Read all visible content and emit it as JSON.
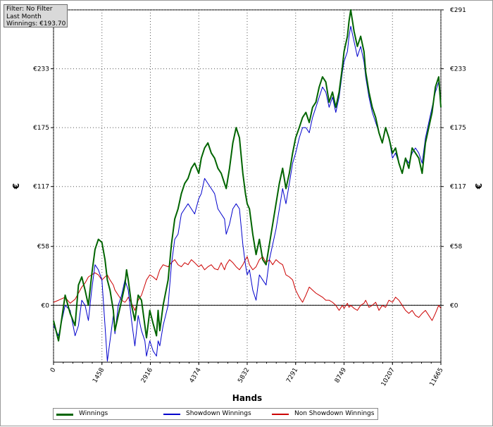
{
  "info_box": {
    "filter": "Filter: No Filter",
    "period": "Last Month",
    "winnings": "Winnings: €193.70"
  },
  "chart_data": {
    "type": "line",
    "xlabel": "Hands",
    "ylabel": "€",
    "xlim": [
      0,
      11665
    ],
    "ylim": [
      -56,
      291
    ],
    "x_ticks": [
      0,
      1458,
      2916,
      4374,
      5832,
      7291,
      8749,
      10207,
      11665
    ],
    "x_tick_labels": [
      "0",
      "1458",
      "2916",
      "4374",
      "5832",
      "7291",
      "8749",
      "10207",
      "11665"
    ],
    "y_ticks": [
      0,
      58,
      117,
      175,
      233,
      291
    ],
    "y_tick_labels": [
      "€0",
      "€58",
      "€117",
      "€175",
      "€233",
      "€291"
    ],
    "grid": true,
    "legend_position": "bottom",
    "series": [
      {
        "name": "Winnings",
        "color": "#006400",
        "x": [
          0,
          150,
          350,
          500,
          650,
          750,
          850,
          950,
          1050,
          1150,
          1250,
          1350,
          1458,
          1550,
          1620,
          1700,
          1800,
          1850,
          1950,
          2050,
          2150,
          2200,
          2250,
          2350,
          2450,
          2550,
          2650,
          2750,
          2800,
          2900,
          3000,
          3100,
          3150,
          3200,
          3300,
          3450,
          3550,
          3650,
          3750,
          3850,
          3950,
          4050,
          4150,
          4250,
          4374,
          4450,
          4550,
          4650,
          4750,
          4850,
          4950,
          5050,
          5150,
          5200,
          5300,
          5400,
          5500,
          5600,
          5700,
          5780,
          5832,
          5900,
          6000,
          6100,
          6200,
          6300,
          6400,
          6500,
          6600,
          6700,
          6800,
          6900,
          7000,
          7100,
          7200,
          7291,
          7400,
          7500,
          7600,
          7700,
          7800,
          7900,
          8000,
          8100,
          8200,
          8300,
          8400,
          8500,
          8600,
          8700,
          8749,
          8850,
          8900,
          8950,
          9050,
          9150,
          9250,
          9350,
          9400,
          9500,
          9600,
          9700,
          9800,
          9900,
          10000,
          10100,
          10207,
          10300,
          10400,
          10500,
          10600,
          10700,
          10800,
          10900,
          11000,
          11100,
          11200,
          11300,
          11400,
          11500,
          11600,
          11665
        ],
        "values": [
          -15,
          -35,
          10,
          -8,
          -20,
          20,
          28,
          15,
          0,
          30,
          55,
          65,
          62,
          45,
          25,
          15,
          -5,
          -25,
          -10,
          5,
          20,
          35,
          25,
          0,
          -15,
          10,
          5,
          -20,
          -32,
          -5,
          -18,
          -30,
          -5,
          -25,
          0,
          25,
          60,
          85,
          95,
          110,
          120,
          125,
          135,
          140,
          130,
          145,
          155,
          160,
          150,
          145,
          135,
          130,
          120,
          115,
          135,
          160,
          175,
          165,
          130,
          110,
          100,
          95,
          70,
          50,
          65,
          45,
          40,
          60,
          80,
          100,
          120,
          135,
          115,
          130,
          150,
          165,
          175,
          185,
          190,
          180,
          195,
          200,
          215,
          225,
          220,
          200,
          210,
          195,
          210,
          235,
          250,
          265,
          280,
          291,
          270,
          255,
          265,
          250,
          230,
          210,
          195,
          185,
          170,
          160,
          175,
          165,
          150,
          155,
          140,
          130,
          145,
          135,
          155,
          150,
          145,
          130,
          160,
          175,
          190,
          215,
          225,
          195
        ],
        "width": 2
      },
      {
        "name": "Showdown Winnings",
        "color": "#0000cc",
        "x": [
          0,
          150,
          350,
          500,
          650,
          750,
          850,
          950,
          1050,
          1150,
          1250,
          1350,
          1458,
          1550,
          1620,
          1700,
          1800,
          1850,
          1950,
          2050,
          2150,
          2200,
          2250,
          2350,
          2450,
          2550,
          2650,
          2750,
          2800,
          2900,
          3000,
          3100,
          3150,
          3200,
          3300,
          3450,
          3550,
          3650,
          3750,
          3850,
          3950,
          4050,
          4150,
          4250,
          4374,
          4450,
          4550,
          4650,
          4750,
          4850,
          4950,
          5050,
          5150,
          5200,
          5300,
          5400,
          5500,
          5600,
          5700,
          5780,
          5832,
          5900,
          6000,
          6100,
          6200,
          6300,
          6400,
          6500,
          6600,
          6700,
          6800,
          6900,
          7000,
          7100,
          7200,
          7291,
          7400,
          7500,
          7600,
          7700,
          7800,
          7900,
          8000,
          8100,
          8200,
          8300,
          8400,
          8500,
          8600,
          8700,
          8749,
          8850,
          8900,
          8950,
          9050,
          9150,
          9250,
          9350,
          9400,
          9500,
          9600,
          9700,
          9800,
          9900,
          10000,
          10100,
          10207,
          10300,
          10400,
          10500,
          10600,
          10700,
          10800,
          10900,
          11000,
          11100,
          11200,
          11300,
          11400,
          11500,
          11600,
          11665
        ],
        "values": [
          -20,
          -30,
          0,
          -5,
          -30,
          -20,
          5,
          0,
          -15,
          15,
          40,
          35,
          25,
          -20,
          -55,
          -35,
          -10,
          -28,
          0,
          10,
          25,
          20,
          15,
          -15,
          -40,
          -10,
          -25,
          -35,
          -50,
          -35,
          -45,
          -50,
          -35,
          -40,
          -20,
          0,
          40,
          65,
          70,
          90,
          95,
          100,
          95,
          90,
          105,
          110,
          125,
          120,
          115,
          110,
          95,
          90,
          85,
          70,
          80,
          95,
          100,
          95,
          60,
          40,
          30,
          35,
          15,
          5,
          30,
          25,
          20,
          45,
          60,
          75,
          95,
          115,
          100,
          120,
          140,
          150,
          165,
          175,
          175,
          170,
          185,
          195,
          205,
          215,
          210,
          195,
          205,
          190,
          205,
          230,
          240,
          250,
          265,
          275,
          260,
          245,
          255,
          240,
          225,
          205,
          190,
          180,
          170,
          160,
          175,
          165,
          145,
          150,
          140,
          130,
          145,
          140,
          150,
          155,
          150,
          140,
          165,
          180,
          195,
          210,
          220,
          195
        ],
        "width": 1
      },
      {
        "name": "Non Showdown Winnings",
        "color": "#cc0000",
        "x": [
          0,
          150,
          350,
          500,
          650,
          750,
          850,
          950,
          1050,
          1150,
          1250,
          1350,
          1458,
          1550,
          1620,
          1700,
          1800,
          1850,
          1950,
          2050,
          2150,
          2200,
          2250,
          2350,
          2450,
          2550,
          2650,
          2750,
          2800,
          2900,
          3000,
          3100,
          3150,
          3200,
          3300,
          3450,
          3550,
          3650,
          3750,
          3850,
          3950,
          4050,
          4150,
          4250,
          4374,
          4450,
          4550,
          4650,
          4750,
          4850,
          4950,
          5050,
          5150,
          5200,
          5300,
          5400,
          5500,
          5600,
          5700,
          5780,
          5832,
          5900,
          6000,
          6100,
          6200,
          6300,
          6400,
          6500,
          6600,
          6700,
          6800,
          6900,
          7000,
          7100,
          7200,
          7291,
          7400,
          7500,
          7600,
          7700,
          7800,
          7900,
          8000,
          8100,
          8200,
          8300,
          8400,
          8500,
          8600,
          8700,
          8749,
          8850,
          8900,
          8950,
          9050,
          9150,
          9250,
          9350,
          9400,
          9500,
          9600,
          9700,
          9800,
          9900,
          10000,
          10100,
          10207,
          10300,
          10400,
          10500,
          10600,
          10700,
          10800,
          10900,
          11000,
          11100,
          11200,
          11300,
          11400,
          11500,
          11600,
          11665
        ],
        "values": [
          3,
          5,
          8,
          2,
          6,
          12,
          18,
          22,
          28,
          30,
          32,
          30,
          25,
          28,
          30,
          25,
          20,
          15,
          10,
          5,
          3,
          5,
          8,
          2,
          -5,
          5,
          10,
          20,
          25,
          30,
          28,
          25,
          30,
          35,
          40,
          38,
          42,
          45,
          40,
          38,
          42,
          40,
          45,
          42,
          38,
          40,
          35,
          38,
          40,
          36,
          35,
          42,
          35,
          40,
          45,
          42,
          38,
          35,
          40,
          45,
          48,
          40,
          35,
          38,
          45,
          48,
          42,
          45,
          40,
          45,
          42,
          40,
          30,
          28,
          25,
          15,
          8,
          3,
          10,
          18,
          15,
          12,
          10,
          8,
          5,
          5,
          3,
          0,
          -5,
          0,
          -3,
          2,
          -2,
          0,
          -3,
          -5,
          0,
          2,
          5,
          -2,
          0,
          3,
          -5,
          0,
          -2,
          5,
          3,
          8,
          5,
          0,
          -5,
          -8,
          -5,
          -10,
          -12,
          -8,
          -5,
          -10,
          -15,
          -8,
          0,
          -3
        ],
        "width": 1
      }
    ]
  }
}
